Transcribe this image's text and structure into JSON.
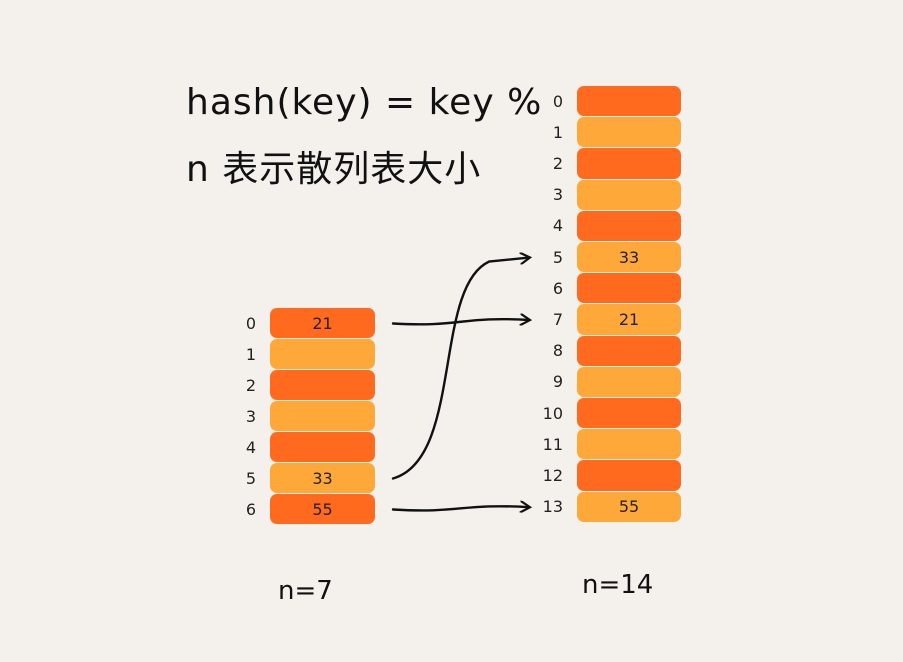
{
  "formula": {
    "line1": "hash(key) = key %",
    "line2": "n 表示散列表大小"
  },
  "small_table": {
    "caption": "n=7",
    "slots": [
      {
        "index": "0",
        "value": "21"
      },
      {
        "index": "1",
        "value": ""
      },
      {
        "index": "2",
        "value": ""
      },
      {
        "index": "3",
        "value": ""
      },
      {
        "index": "4",
        "value": ""
      },
      {
        "index": "5",
        "value": "33"
      },
      {
        "index": "6",
        "value": "55"
      }
    ]
  },
  "large_table": {
    "caption": "n=14",
    "slots": [
      {
        "index": "0",
        "value": ""
      },
      {
        "index": "1",
        "value": ""
      },
      {
        "index": "2",
        "value": ""
      },
      {
        "index": "3",
        "value": ""
      },
      {
        "index": "4",
        "value": ""
      },
      {
        "index": "5",
        "value": "33"
      },
      {
        "index": "6",
        "value": ""
      },
      {
        "index": "7",
        "value": "21"
      },
      {
        "index": "8",
        "value": ""
      },
      {
        "index": "9",
        "value": ""
      },
      {
        "index": "10",
        "value": ""
      },
      {
        "index": "11",
        "value": ""
      },
      {
        "index": "12",
        "value": ""
      },
      {
        "index": "13",
        "value": "55"
      }
    ]
  },
  "arrows": [
    {
      "from": "0",
      "to": "7"
    },
    {
      "from": "5",
      "to": "5"
    },
    {
      "from": "6",
      "to": "13"
    }
  ],
  "colors": {
    "background": "#f4f1ed",
    "cell_dark": "#ff6a1e",
    "cell_light": "#ffa83a",
    "ink": "#111111"
  }
}
